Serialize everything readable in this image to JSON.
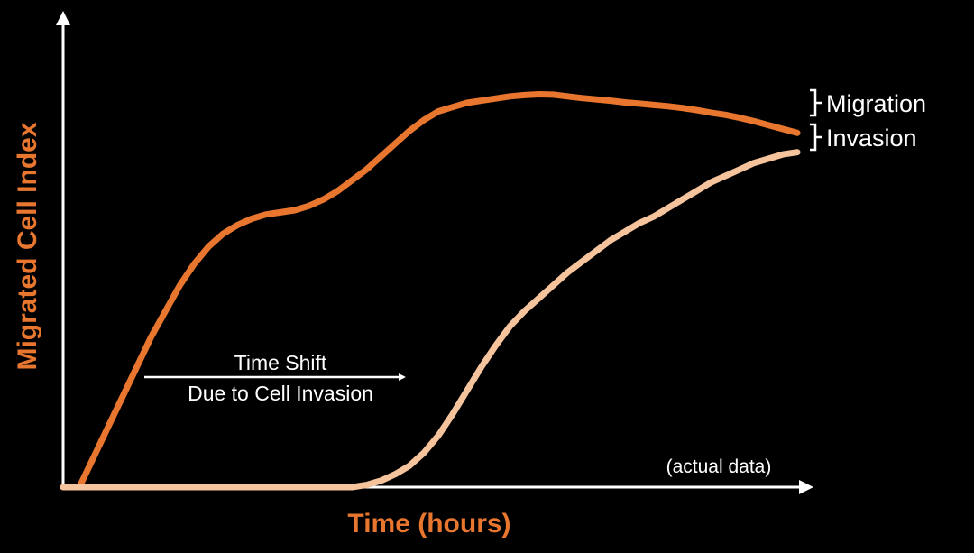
{
  "chart_data": {
    "type": "line",
    "xlabel": "Time (hours)",
    "ylabel": "Migrated Cell Index",
    "xlim": [
      0,
      100
    ],
    "ylim": [
      0,
      100
    ],
    "x": [
      0,
      2,
      4,
      6,
      8,
      10,
      12,
      14,
      16,
      18,
      20,
      22,
      24,
      26,
      28,
      30,
      32,
      34,
      36,
      38,
      40,
      42,
      44,
      46,
      48,
      50,
      52,
      54,
      56,
      58,
      60,
      62,
      64,
      66,
      68,
      70,
      72,
      74,
      76,
      78,
      80,
      82,
      84,
      86,
      88,
      90,
      92,
      94,
      96,
      98,
      100
    ],
    "series": [
      {
        "name": "Migration",
        "color": "#e8762e",
        "values": [
          0,
          7,
          14,
          21,
          28,
          35,
          41,
          47,
          52,
          56,
          59,
          61,
          62.5,
          63.5,
          64,
          64.5,
          65.5,
          67,
          69,
          71.5,
          74,
          77,
          80,
          83,
          85.5,
          87.5,
          88.5,
          89.5,
          90,
          90.5,
          91,
          91.3,
          91.5,
          91.4,
          91,
          90.6,
          90.3,
          90,
          89.6,
          89.3,
          89,
          88.7,
          88.3,
          87.8,
          87.2,
          86.7,
          86,
          85.2,
          84.3,
          83.4,
          82.5
        ]
      },
      {
        "name": "Invasion",
        "color": "#f5c39c",
        "values": [
          0,
          0,
          0,
          0,
          0,
          0,
          0,
          0,
          0,
          0,
          0,
          0,
          0,
          0,
          0,
          0,
          0,
          0,
          0,
          0,
          0.5,
          1.5,
          3,
          5,
          8,
          12,
          17,
          22.5,
          28,
          33,
          37.5,
          41,
          44,
          47,
          50,
          52.5,
          55,
          57.5,
          59.5,
          61.5,
          63,
          65,
          67,
          69,
          71,
          72.5,
          74,
          75.5,
          76.5,
          77.5,
          78
        ]
      }
    ],
    "annotations": {
      "shift_line1": "Time Shift",
      "shift_line2": "Due to Cell Invasion",
      "note": "(actual data)",
      "label_migration": "Migration",
      "label_invasion": "Invasion"
    }
  }
}
